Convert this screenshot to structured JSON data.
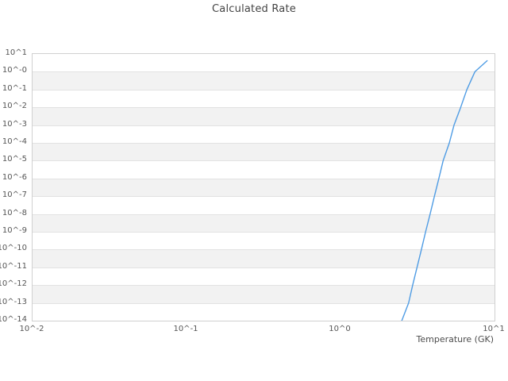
{
  "chart_data": {
    "type": "line",
    "title": "Calculated Rate",
    "xlabel": "Temperature (GK)",
    "ylabel": "",
    "x_scale": "log",
    "y_scale": "log",
    "xlim": [
      0.01,
      10
    ],
    "ylim_log10": [
      -14,
      1
    ],
    "x_tick_labels": [
      "10^-2",
      "10^-1",
      "10^0",
      "10^1"
    ],
    "y_tick_labels": [
      "10^1",
      "10^-0",
      "10^-1",
      "10^-2",
      "10^-3",
      "10^-4",
      "10^-5",
      "10^-6",
      "10^-7",
      "10^-8",
      "10^-9",
      "10^-10",
      "10^-11",
      "10^-12",
      "10^-13",
      "10^-14"
    ],
    "grid": "horizontal-alternating-bands",
    "legend": false,
    "series": [
      {
        "name": "calculated-rate",
        "temperatures_gk": [
          2.5,
          2.77,
          2.94,
          3.14,
          3.35,
          3.57,
          3.82,
          4.07,
          4.35,
          4.64,
          5.09,
          5.46,
          6.03,
          6.62,
          7.46,
          8.95
        ],
        "log10_rate": [
          -14.0,
          -13.0,
          -12.0,
          -11.0,
          -10.0,
          -9.0,
          -8.0,
          -7.0,
          -6.0,
          -5.0,
          -4.0,
          -3.0,
          -2.0,
          -1.0,
          0.0,
          0.62
        ]
      }
    ],
    "colors": {
      "line": "#4f9ce4",
      "band": "#f2f2f2",
      "gridline": "#e2e2e2",
      "plot_border": "#d0d0d0",
      "tick_text": "#555555",
      "title_text": "#444444"
    }
  }
}
